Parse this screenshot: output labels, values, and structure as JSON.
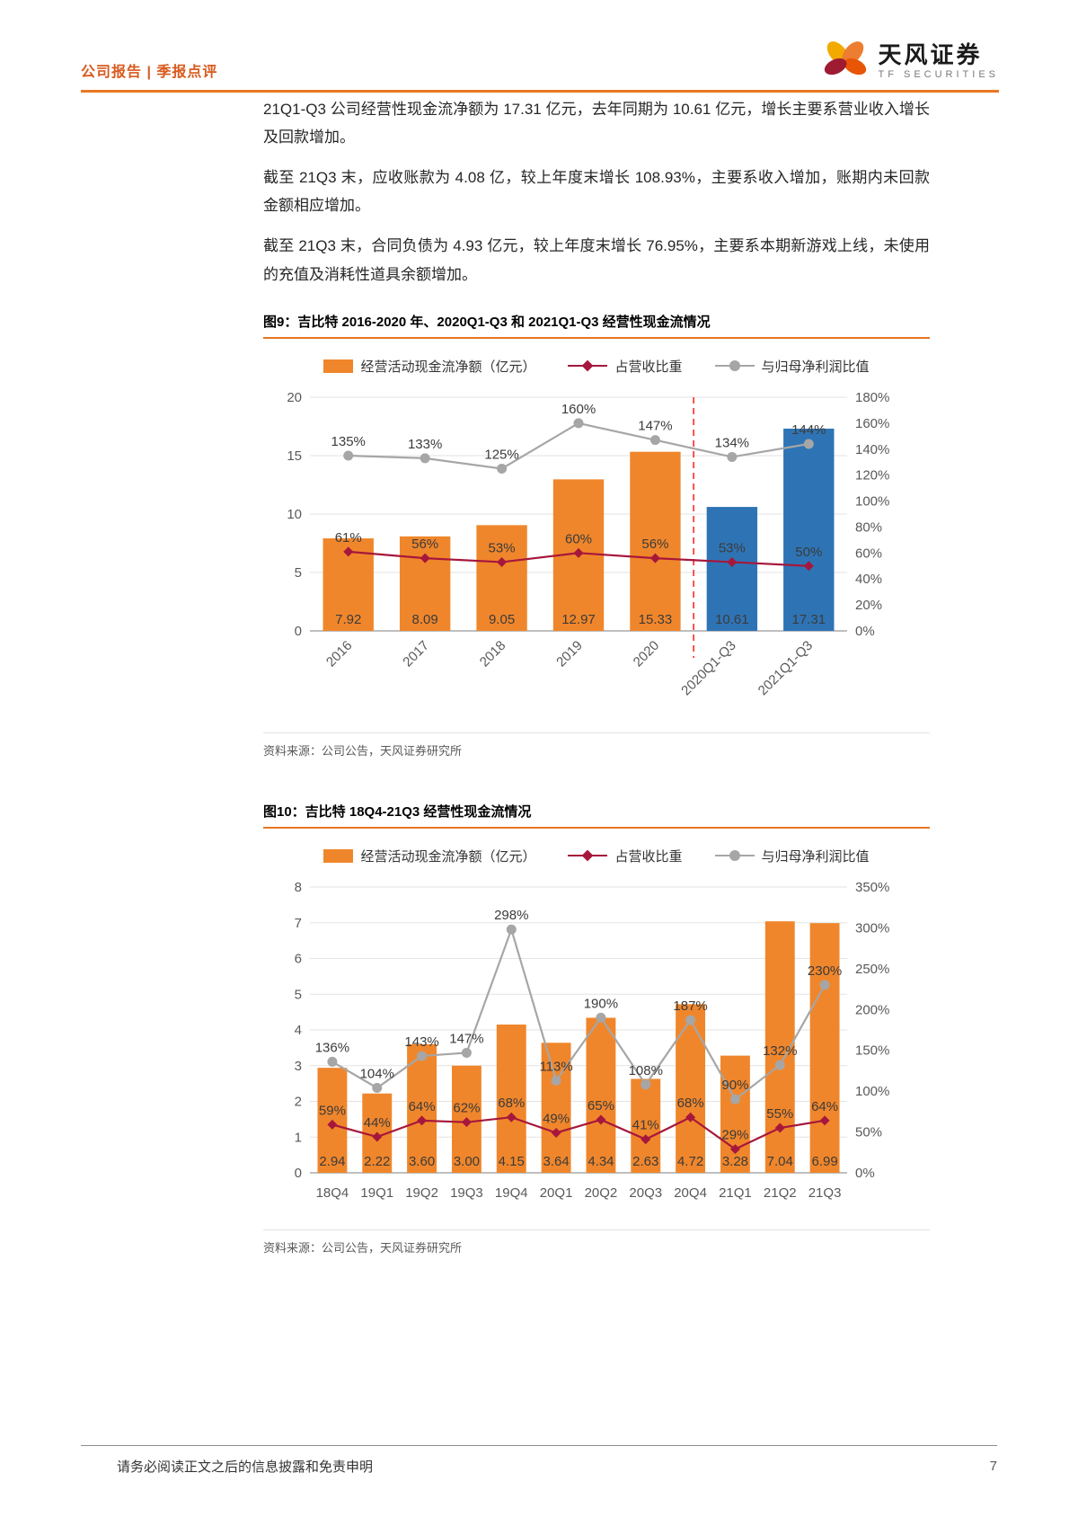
{
  "header": {
    "left": "公司报告 | 季报点评",
    "brand": "天风证券",
    "brand_sub": "TF SECURITIES"
  },
  "paragraphs": [
    "21Q1-Q3 公司经营性现金流净额为 17.31 亿元，去年同期为 10.61 亿元，增长主要系营业收入增长及回款增加。",
    "截至 21Q3 末，应收账款为 4.08 亿，较上年度末增长 108.93%，主要系收入增加，账期内未回款金额相应增加。",
    "截至 21Q3 末，合同负债为 4.93 亿元，较上年度末增长 76.95%，主要系本期新游戏上线，未使用的充值及消耗性道具余额增加。"
  ],
  "figures": [
    {
      "title": "图9：吉比特 2016-2020 年、2020Q1-Q3 和 2021Q1-Q3 经营性现金流情况",
      "source": "资料来源：公司公告，天风证券研究所"
    },
    {
      "title": "图10：吉比特 18Q4-21Q3 经营性现金流情况",
      "source": "资料来源：公司公告，天风证券研究所"
    }
  ],
  "legend": {
    "bar": "经营活动现金流净额（亿元）",
    "line1": "占营收比重",
    "line2": "与归母净利润比值"
  },
  "footer": {
    "disclaimer": "请务必阅读正文之后的信息披露和免责申明",
    "page_number": "7"
  },
  "colors": {
    "brand_orange": "#E87722",
    "header_text": "#D85A1E",
    "bar_orange": "#F0862B",
    "bar_blue": "#2E74B5",
    "line_red": "#A6173C",
    "line_gray": "#A6A6A6",
    "divider_red": "#FF2A2A"
  },
  "chart_data": [
    {
      "type": "bar+line",
      "title": "吉比特 2016-2020 年、2020Q1-Q3 和 2021Q1-Q3 经营性现金流情况",
      "categories": [
        "2016",
        "2017",
        "2018",
        "2019",
        "2020",
        "2020Q1-Q3",
        "2021Q1-Q3"
      ],
      "bar_series": {
        "name": "经营活动现金流净额（亿元）",
        "axis": "left",
        "values": [
          7.92,
          8.09,
          9.05,
          12.97,
          15.33,
          10.61,
          17.31
        ],
        "colors": [
          "#F0862B",
          "#F0862B",
          "#F0862B",
          "#F0862B",
          "#F0862B",
          "#2E74B5",
          "#2E74B5"
        ]
      },
      "line_series": [
        {
          "name": "占营收比重",
          "axis": "right",
          "marker": "diamond",
          "color": "#A6173C",
          "values_pct": [
            61,
            56,
            53,
            60,
            56,
            53,
            50
          ]
        },
        {
          "name": "与归母净利润比值",
          "axis": "right",
          "marker": "circle",
          "color": "#A6A6A6",
          "values_pct": [
            135,
            133,
            125,
            160,
            147,
            134,
            144
          ]
        }
      ],
      "y_left": {
        "min": 0,
        "max": 20,
        "step": 5
      },
      "y_right": {
        "min": 0,
        "max": 180,
        "step": 20,
        "unit": "%"
      },
      "divider_after_category": "2020",
      "x_labels_rotated": true,
      "grid": true,
      "legend_position": "top"
    },
    {
      "type": "bar+line",
      "title": "吉比特 18Q4-21Q3 经营性现金流情况",
      "categories": [
        "18Q4",
        "19Q1",
        "19Q2",
        "19Q3",
        "19Q4",
        "20Q1",
        "20Q2",
        "20Q3",
        "20Q4",
        "21Q1",
        "21Q2",
        "21Q3"
      ],
      "bar_series": {
        "name": "经营活动现金流净额（亿元）",
        "axis": "left",
        "color": "#F0862B",
        "values": [
          2.94,
          2.22,
          3.6,
          3.0,
          4.15,
          3.64,
          4.34,
          2.63,
          4.72,
          3.28,
          7.04,
          6.99
        ]
      },
      "line_series": [
        {
          "name": "占营收比重",
          "axis": "right",
          "marker": "diamond",
          "color": "#A6173C",
          "values_pct": [
            59,
            44,
            64,
            62,
            68,
            49,
            65,
            41,
            68,
            29,
            55,
            64
          ]
        },
        {
          "name": "与归母净利润比值",
          "axis": "right",
          "marker": "circle",
          "color": "#A6A6A6",
          "values_pct": [
            136,
            104,
            143,
            147,
            298,
            113,
            190,
            108,
            187,
            90,
            132,
            230
          ]
        }
      ],
      "y_left": {
        "min": 0,
        "max": 8,
        "step": 1
      },
      "y_right": {
        "min": 0,
        "max": 350,
        "step": 50,
        "unit": "%"
      },
      "x_labels_rotated": false,
      "grid": true,
      "legend_position": "top"
    }
  ]
}
